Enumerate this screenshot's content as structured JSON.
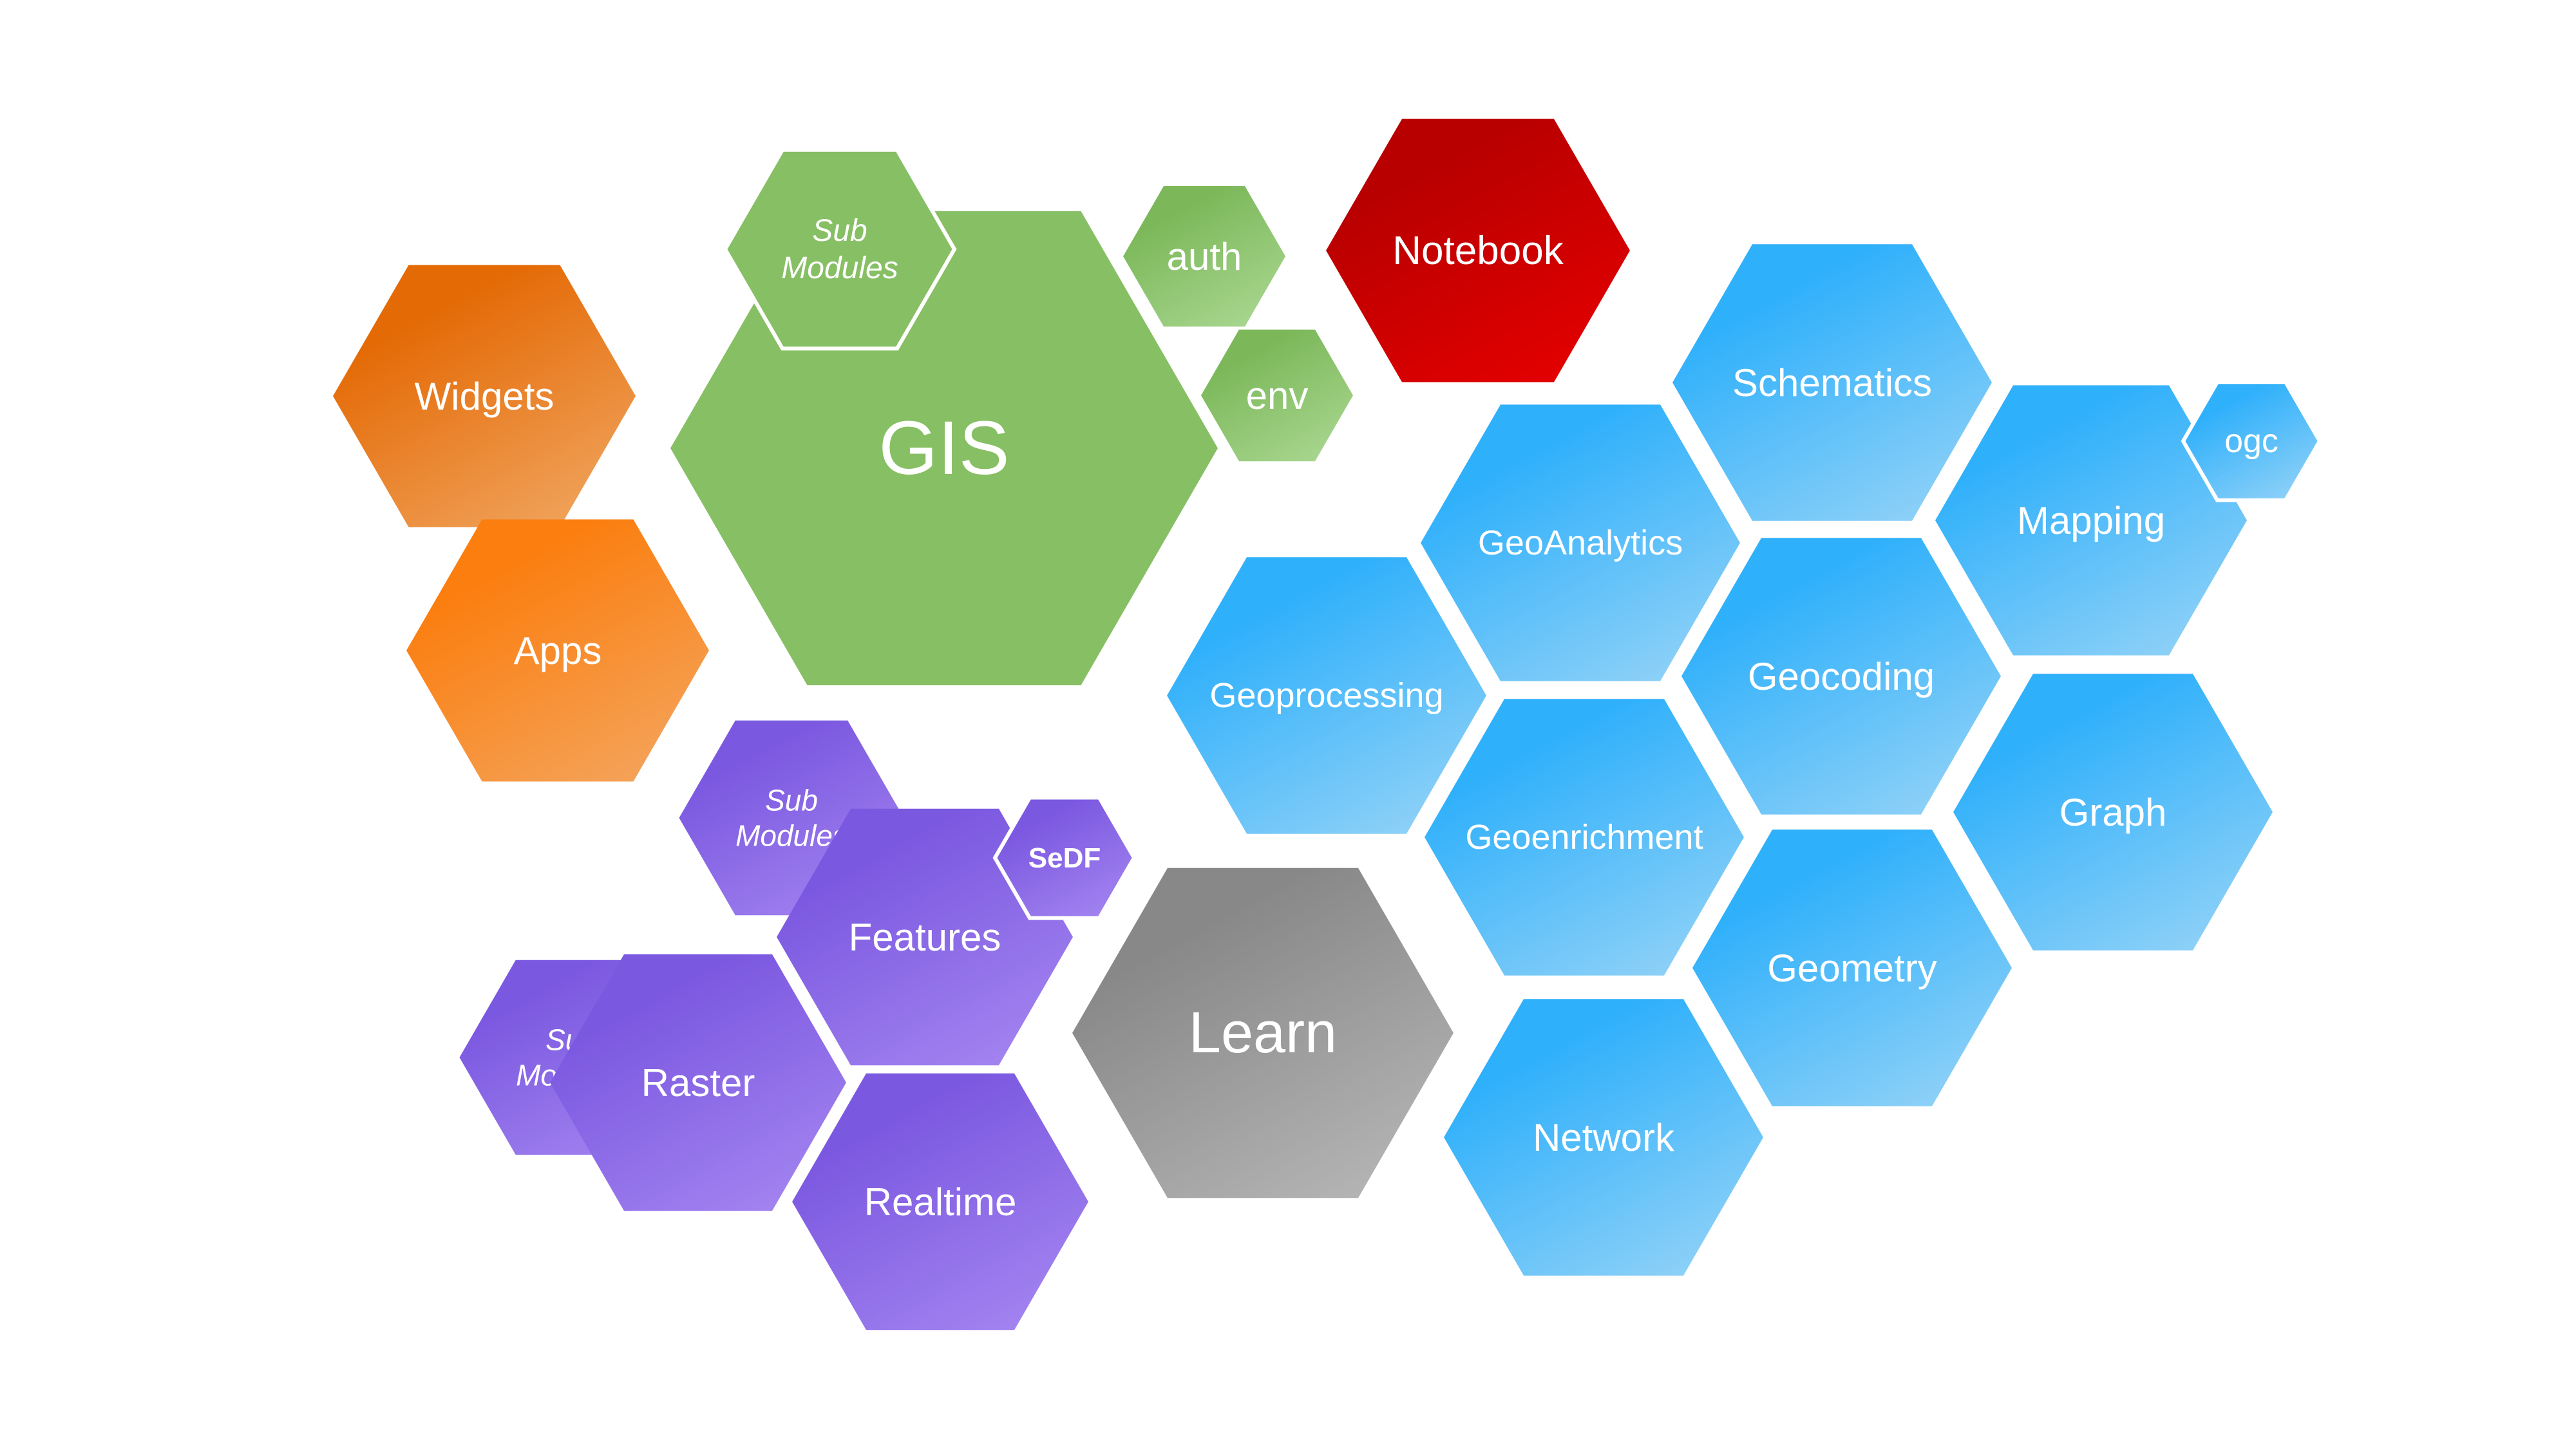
{
  "colors": {
    "orange": [
      "#e46a06",
      "#f0a35c"
    ],
    "bright_orange": [
      "#fb7e0f",
      "#f4a35a"
    ],
    "green": [
      "#87bf64",
      "#87bf64"
    ],
    "green_light": [
      "#7cb85a",
      "#a8d68f"
    ],
    "red": [
      "#b80000",
      "#e40000"
    ],
    "blue": [
      "#2fb0fb",
      "#8fd1f7"
    ],
    "purple": [
      "#7b58e0",
      "#a384f0"
    ],
    "gray": [
      "#888888",
      "#b5b5b5"
    ]
  },
  "nodes": [
    {
      "id": "gis",
      "label": "GIS",
      "color": "green",
      "icon": "hexagon"
    },
    {
      "id": "gis-submodules",
      "label": "Sub\nModules",
      "color": "green",
      "style": "italic",
      "icon": "hexagon"
    },
    {
      "id": "auth",
      "label": "auth",
      "color": "green_light",
      "icon": "hexagon"
    },
    {
      "id": "env",
      "label": "env",
      "color": "green_light",
      "icon": "hexagon"
    },
    {
      "id": "notebook",
      "label": "Notebook",
      "color": "red",
      "icon": "hexagon"
    },
    {
      "id": "widgets",
      "label": "Widgets",
      "color": "orange",
      "icon": "hexagon"
    },
    {
      "id": "apps",
      "label": "Apps",
      "color": "bright_orange",
      "icon": "hexagon"
    },
    {
      "id": "schematics",
      "label": "Schematics",
      "color": "blue",
      "icon": "hexagon"
    },
    {
      "id": "geoanalytics",
      "label": "GeoAnalytics",
      "color": "blue",
      "icon": "hexagon"
    },
    {
      "id": "mapping",
      "label": "Mapping",
      "color": "blue",
      "icon": "hexagon"
    },
    {
      "id": "ogc",
      "label": "ogc",
      "color": "blue",
      "icon": "hexagon"
    },
    {
      "id": "geoprocessing",
      "label": "Geoprocessing",
      "color": "blue",
      "icon": "hexagon"
    },
    {
      "id": "geocoding",
      "label": "Geocoding",
      "color": "blue",
      "icon": "hexagon"
    },
    {
      "id": "geoenrichment",
      "label": "Geoenrichment",
      "color": "blue",
      "icon": "hexagon"
    },
    {
      "id": "graph",
      "label": "Graph",
      "color": "blue",
      "icon": "hexagon"
    },
    {
      "id": "geometry",
      "label": "Geometry",
      "color": "blue",
      "icon": "hexagon"
    },
    {
      "id": "network",
      "label": "Network",
      "color": "blue",
      "icon": "hexagon"
    },
    {
      "id": "features-submodules",
      "label": "Sub\nModules",
      "color": "purple",
      "style": "italic",
      "icon": "hexagon"
    },
    {
      "id": "features",
      "label": "Features",
      "color": "purple",
      "icon": "hexagon"
    },
    {
      "id": "sedf",
      "label": "SeDF",
      "color": "purple",
      "style": "bold",
      "icon": "hexagon"
    },
    {
      "id": "raster-submodules",
      "label": "Sub\nModules",
      "color": "purple",
      "style": "italic",
      "icon": "hexagon"
    },
    {
      "id": "raster",
      "label": "Raster",
      "color": "purple",
      "icon": "hexagon"
    },
    {
      "id": "realtime",
      "label": "Realtime",
      "color": "purple",
      "icon": "hexagon"
    },
    {
      "id": "learn",
      "label": "Learn",
      "color": "gray",
      "icon": "hexagon"
    }
  ]
}
